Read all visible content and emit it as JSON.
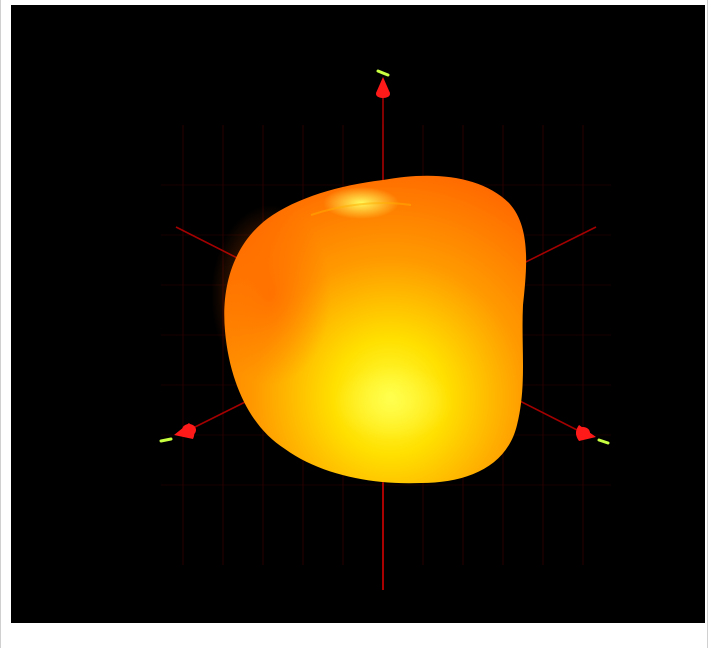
{
  "viewport": {
    "background_color": "#000000",
    "render_type": "3d-surface-plot"
  },
  "surface": {
    "name": "orange-blob-surface",
    "color_dark": "#ff6a00",
    "color_mid": "#ff9a00",
    "color_light": "#ffe000",
    "color_highlight": "#ffff40"
  },
  "axes": {
    "color": "#c00000",
    "arrowhead_color": "#ff1a1a",
    "tip_marker_color": "#c8ff40",
    "items": [
      {
        "name": "z-axis",
        "direction": "up"
      },
      {
        "name": "x-axis",
        "direction": "lower-left"
      },
      {
        "name": "y-axis",
        "direction": "lower-right"
      }
    ]
  },
  "grid": {
    "visible": true,
    "color": "#2a0000"
  }
}
